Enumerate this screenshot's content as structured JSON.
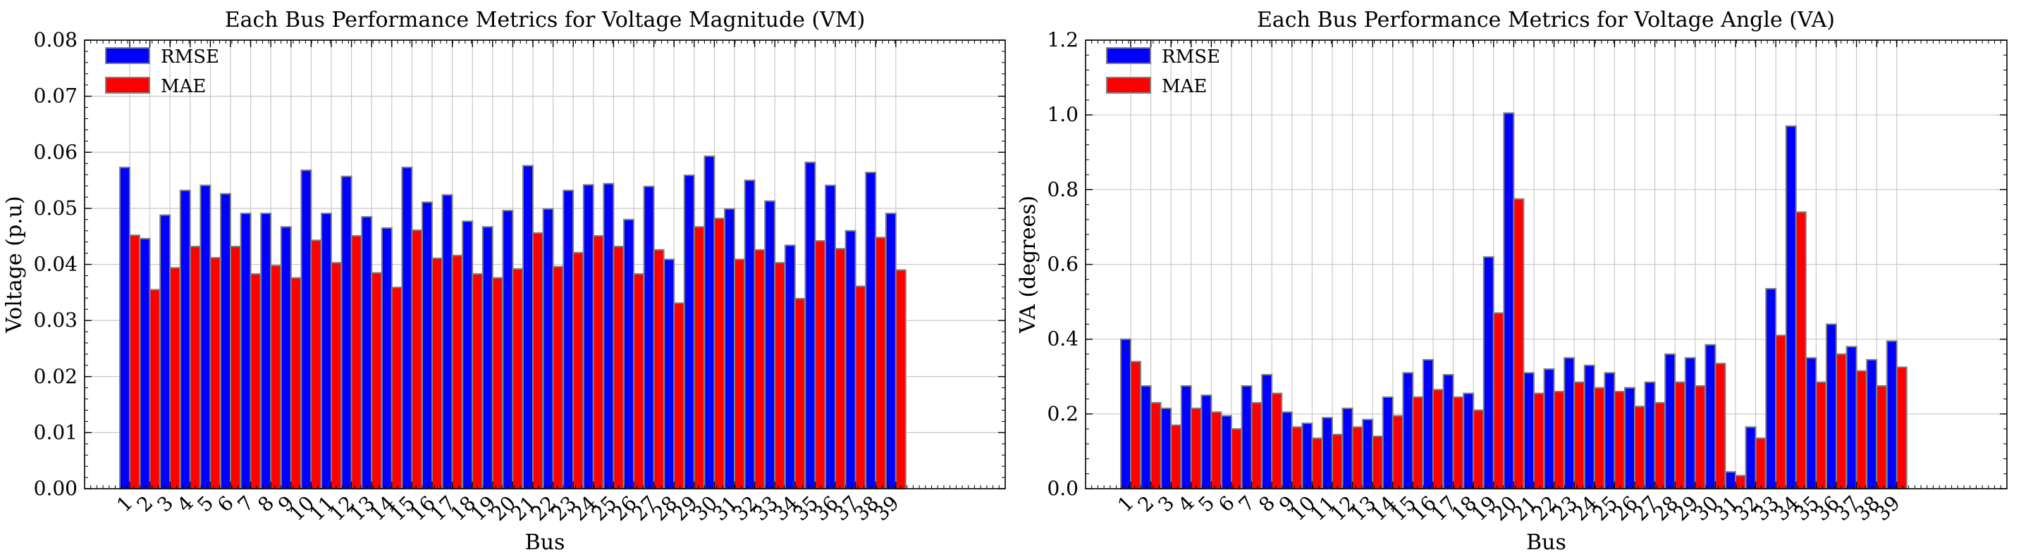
{
  "chart_data": [
    {
      "type": "bar",
      "title": "Each Bus Performance Metrics for Voltage Magnitude (VM)",
      "xlabel": "Bus",
      "ylabel": "Voltage (p.u)",
      "ylim": [
        0,
        0.08
      ],
      "yticks": [
        0.0,
        0.01,
        0.02,
        0.03,
        0.04,
        0.05,
        0.06,
        0.07,
        0.08
      ],
      "ytick_labels": [
        "0.00",
        "0.01",
        "0.02",
        "0.03",
        "0.04",
        "0.05",
        "0.06",
        "0.07",
        "0.08"
      ],
      "grid": true,
      "legend": "top-left",
      "categories": [
        "1",
        "2",
        "3",
        "4",
        "5",
        "6",
        "7",
        "8",
        "9",
        "10",
        "11",
        "12",
        "13",
        "14",
        "15",
        "16",
        "17",
        "18",
        "19",
        "20",
        "21",
        "22",
        "23",
        "24",
        "25",
        "26",
        "27",
        "28",
        "29",
        "30",
        "31",
        "32",
        "33",
        "34",
        "35",
        "36",
        "37",
        "38",
        "39"
      ],
      "series": [
        {
          "name": "RMSE",
          "color": "#0000ff",
          "values": [
            0.0573,
            0.0446,
            0.0488,
            0.0532,
            0.0541,
            0.0526,
            0.0491,
            0.0491,
            0.0467,
            0.0568,
            0.0491,
            0.0557,
            0.0485,
            0.0465,
            0.0573,
            0.0511,
            0.0524,
            0.0477,
            0.0467,
            0.0496,
            0.0576,
            0.0499,
            0.0532,
            0.0542,
            0.0544,
            0.048,
            0.0539,
            0.0409,
            0.0559,
            0.0593,
            0.0499,
            0.055,
            0.0513,
            0.0434,
            0.0582,
            0.0541,
            0.046,
            0.0564,
            0.0491
          ]
        },
        {
          "name": "MAE",
          "color": "#ff0000",
          "values": [
            0.0452,
            0.0355,
            0.0394,
            0.0432,
            0.0412,
            0.0432,
            0.0383,
            0.0398,
            0.0376,
            0.0443,
            0.0403,
            0.0451,
            0.0385,
            0.0359,
            0.0461,
            0.0411,
            0.0416,
            0.0383,
            0.0376,
            0.0392,
            0.0456,
            0.0396,
            0.0421,
            0.0451,
            0.0432,
            0.0383,
            0.0426,
            0.0331,
            0.0467,
            0.0482,
            0.0409,
            0.0426,
            0.0403,
            0.0339,
            0.0442,
            0.0428,
            0.0361,
            0.0448,
            0.039
          ]
        }
      ]
    },
    {
      "type": "bar",
      "title": "Each Bus Performance Metrics for Voltage Angle (VA)",
      "xlabel": "Bus",
      "ylabel": "VA (degrees)",
      "ylim": [
        0,
        1.2
      ],
      "yticks": [
        0.0,
        0.2,
        0.4,
        0.6,
        0.8,
        1.0,
        1.2
      ],
      "ytick_labels": [
        "0.0",
        "0.2",
        "0.4",
        "0.6",
        "0.8",
        "1.0",
        "1.2"
      ],
      "grid": true,
      "legend": "top-left",
      "categories": [
        "1",
        "2",
        "3",
        "4",
        "5",
        "6",
        "7",
        "8",
        "9",
        "10",
        "11",
        "12",
        "13",
        "14",
        "15",
        "16",
        "17",
        "18",
        "19",
        "20",
        "21",
        "22",
        "23",
        "24",
        "25",
        "26",
        "27",
        "28",
        "29",
        "30",
        "31",
        "32",
        "33",
        "34",
        "35",
        "36",
        "37",
        "38",
        "39"
      ],
      "series": [
        {
          "name": "RMSE",
          "color": "#0000ff",
          "values": [
            0.4,
            0.275,
            0.215,
            0.275,
            0.25,
            0.195,
            0.275,
            0.305,
            0.205,
            0.175,
            0.19,
            0.215,
            0.185,
            0.245,
            0.31,
            0.345,
            0.305,
            0.255,
            0.62,
            1.005,
            0.31,
            0.32,
            0.35,
            0.33,
            0.31,
            0.27,
            0.285,
            0.36,
            0.35,
            0.385,
            0.045,
            0.165,
            0.535,
            0.97,
            0.35,
            0.44,
            0.38,
            0.345,
            0.395
          ]
        },
        {
          "name": "MAE",
          "color": "#ff0000",
          "values": [
            0.34,
            0.23,
            0.17,
            0.215,
            0.205,
            0.16,
            0.23,
            0.255,
            0.165,
            0.135,
            0.145,
            0.165,
            0.14,
            0.195,
            0.245,
            0.265,
            0.245,
            0.21,
            0.47,
            0.775,
            0.255,
            0.26,
            0.285,
            0.27,
            0.26,
            0.22,
            0.23,
            0.285,
            0.275,
            0.335,
            0.035,
            0.135,
            0.41,
            0.74,
            0.285,
            0.36,
            0.315,
            0.275,
            0.325
          ]
        }
      ]
    }
  ]
}
